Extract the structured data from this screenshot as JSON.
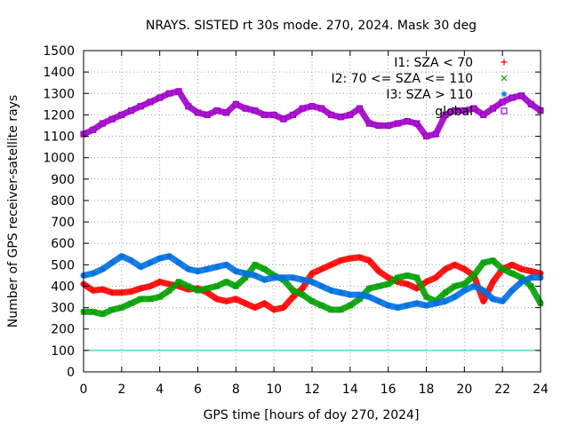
{
  "chart_data": {
    "type": "scatter",
    "title": "NRAYS. SISTED rt 30s mode. 270, 2024. Mask 30 deg",
    "xlabel": "GPS time [hours of doy 270, 2024]",
    "ylabel": "Number of GPS receiver-satellite rays",
    "xlim": [
      0,
      24
    ],
    "ylim": [
      0,
      1500
    ],
    "xticks": [
      "0",
      "2",
      "4",
      "6",
      "8",
      "10",
      "12",
      "14",
      "16",
      "18",
      "20",
      "22",
      "24"
    ],
    "yticks": [
      "0",
      "100",
      "200",
      "300",
      "400",
      "500",
      "600",
      "700",
      "800",
      "900",
      "1000",
      "1100",
      "1200",
      "1300",
      "1400",
      "1500"
    ],
    "grid": true,
    "legend_position": "top-right",
    "threshold_line": {
      "y": 100,
      "color": "#00c8c8"
    },
    "series": [
      {
        "name": "I1: SZA < 70",
        "marker": "+",
        "color": "#ff0000",
        "x": [
          0,
          0.5,
          1,
          1.5,
          2,
          2.5,
          3,
          3.5,
          4,
          4.5,
          5,
          5.5,
          6,
          6.5,
          7,
          7.5,
          8,
          8.5,
          9,
          9.5,
          10,
          10.5,
          11,
          11.5,
          12,
          12.5,
          13,
          13.5,
          14,
          14.5,
          15,
          15.5,
          16,
          16.5,
          17,
          17.5,
          18,
          18.5,
          19,
          19.5,
          20,
          20.5,
          21,
          21.5,
          22,
          22.5,
          23,
          23.5,
          24
        ],
        "y": [
          410,
          380,
          385,
          370,
          370,
          375,
          390,
          400,
          420,
          410,
          400,
          385,
          390,
          370,
          340,
          330,
          340,
          320,
          300,
          320,
          290,
          300,
          350,
          390,
          460,
          480,
          500,
          520,
          530,
          535,
          520,
          470,
          440,
          420,
          410,
          390,
          420,
          440,
          480,
          500,
          480,
          450,
          330,
          420,
          480,
          500,
          480,
          470,
          460
        ]
      },
      {
        "name": "I2: 70 <= SZA <= 110",
        "marker": "x",
        "color": "#00a000",
        "x": [
          0,
          0.5,
          1,
          1.5,
          2,
          2.5,
          3,
          3.5,
          4,
          4.5,
          5,
          5.5,
          6,
          6.5,
          7,
          7.5,
          8,
          8.5,
          9,
          9.5,
          10,
          10.5,
          11,
          11.5,
          12,
          12.5,
          13,
          13.5,
          14,
          14.5,
          15,
          15.5,
          16,
          16.5,
          17,
          17.5,
          18,
          18.5,
          19,
          19.5,
          20,
          20.5,
          21,
          21.5,
          22,
          22.5,
          23,
          23.5,
          24
        ],
        "y": [
          280,
          280,
          270,
          290,
          300,
          320,
          340,
          340,
          350,
          380,
          420,
          400,
          380,
          390,
          400,
          420,
          400,
          440,
          500,
          480,
          450,
          430,
          380,
          360,
          330,
          310,
          290,
          290,
          310,
          340,
          390,
          400,
          410,
          440,
          450,
          440,
          350,
          330,
          370,
          400,
          410,
          450,
          510,
          520,
          480,
          460,
          440,
          400,
          320
        ]
      },
      {
        "name": "I3: SZA > 110",
        "marker": "*",
        "color": "#0070e0",
        "x": [
          0,
          0.5,
          1,
          1.5,
          2,
          2.5,
          3,
          3.5,
          4,
          4.5,
          5,
          5.5,
          6,
          6.5,
          7,
          7.5,
          8,
          8.5,
          9,
          9.5,
          10,
          10.5,
          11,
          11.5,
          12,
          12.5,
          13,
          13.5,
          14,
          14.5,
          15,
          15.5,
          16,
          16.5,
          17,
          17.5,
          18,
          18.5,
          19,
          19.5,
          20,
          20.5,
          21,
          21.5,
          22,
          22.5,
          23,
          23.5,
          24
        ],
        "y": [
          450,
          460,
          480,
          510,
          540,
          520,
          490,
          510,
          530,
          540,
          510,
          480,
          470,
          480,
          490,
          500,
          470,
          460,
          450,
          430,
          440,
          440,
          440,
          430,
          420,
          400,
          380,
          370,
          360,
          360,
          350,
          330,
          310,
          300,
          310,
          320,
          310,
          320,
          330,
          350,
          380,
          400,
          380,
          340,
          330,
          380,
          420,
          440,
          440
        ]
      },
      {
        "name": "global",
        "marker": "square",
        "color": "#a000c8",
        "x": [
          0,
          0.5,
          1,
          1.5,
          2,
          2.5,
          3,
          3.5,
          4,
          4.5,
          5,
          5.5,
          6,
          6.5,
          7,
          7.5,
          8,
          8.5,
          9,
          9.5,
          10,
          10.5,
          11,
          11.5,
          12,
          12.5,
          13,
          13.5,
          14,
          14.5,
          15,
          15.5,
          16,
          16.5,
          17,
          17.5,
          18,
          18.5,
          19,
          19.5,
          20,
          20.5,
          21,
          21.5,
          22,
          22.5,
          23,
          23.5,
          24
        ],
        "y": [
          1110,
          1130,
          1160,
          1180,
          1200,
          1220,
          1240,
          1260,
          1280,
          1300,
          1310,
          1240,
          1210,
          1200,
          1220,
          1210,
          1250,
          1230,
          1220,
          1200,
          1200,
          1180,
          1200,
          1230,
          1240,
          1230,
          1200,
          1190,
          1200,
          1230,
          1160,
          1150,
          1150,
          1160,
          1170,
          1160,
          1100,
          1110,
          1200,
          1220,
          1220,
          1230,
          1200,
          1230,
          1260,
          1280,
          1290,
          1250,
          1220
        ]
      }
    ]
  }
}
